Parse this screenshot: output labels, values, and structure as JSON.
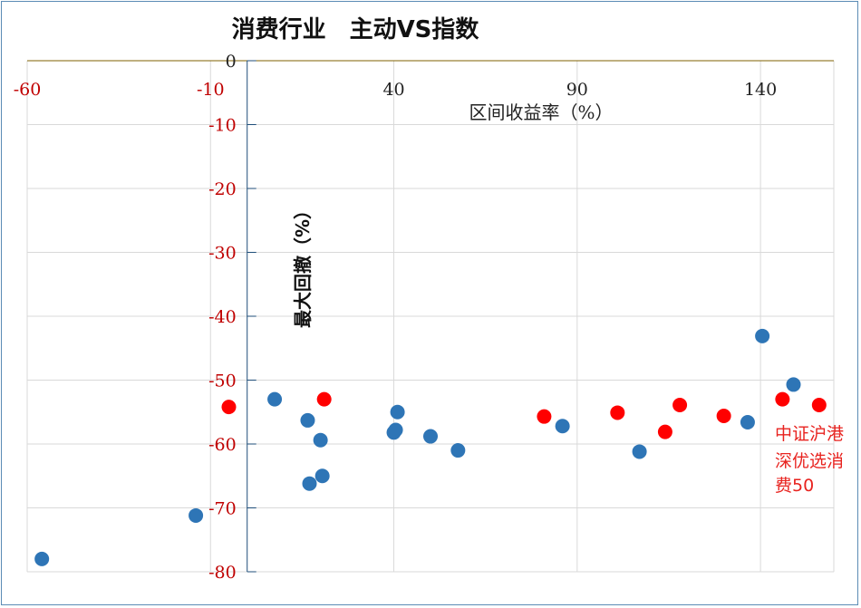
{
  "chart_data": {
    "type": "scatter",
    "title": "消费行业　主动VS指数",
    "xlabel": "区间收益率（%）",
    "ylabel": "最大回撤（%）",
    "xlim": [
      -60,
      160
    ],
    "ylim": [
      -80,
      0
    ],
    "x_ticks": [
      -60,
      -10,
      40,
      90,
      140
    ],
    "x_tick_labels": [
      "-60",
      "-10",
      "40",
      "90",
      "140"
    ],
    "y_ticks": [
      0,
      -10,
      -20,
      -30,
      -40,
      -50,
      -60,
      -70,
      -80
    ],
    "y_tick_labels": [
      "0",
      "-10",
      "-20",
      "-30",
      "-40",
      "-50",
      "-60",
      "-70",
      "-80"
    ],
    "grid": true,
    "colors": {
      "series_active": "#2e75b6",
      "series_index": "#ff0000",
      "negative_tick": "#c00000",
      "x_axis_line": "#7f6000",
      "grid": "#d9d9d9"
    },
    "series": [
      {
        "color": "#2e75b6",
        "points": [
          {
            "x": -56,
            "y": -78
          },
          {
            "x": -14,
            "y": -71.2
          },
          {
            "x": 7.5,
            "y": -53
          },
          {
            "x": 16.5,
            "y": -56.3
          },
          {
            "x": 17,
            "y": -66.2
          },
          {
            "x": 20,
            "y": -59.4
          },
          {
            "x": 20.5,
            "y": -65
          },
          {
            "x": 40,
            "y": -58.2
          },
          {
            "x": 40.5,
            "y": -57.8
          },
          {
            "x": 41,
            "y": -55
          },
          {
            "x": 50,
            "y": -58.8
          },
          {
            "x": 57.5,
            "y": -61
          },
          {
            "x": 86,
            "y": -57.2
          },
          {
            "x": 107,
            "y": -61.2
          },
          {
            "x": 136.5,
            "y": -56.6
          },
          {
            "x": 140.5,
            "y": -43.1
          },
          {
            "x": 149,
            "y": -50.7
          }
        ]
      },
      {
        "color": "#ff0000",
        "points": [
          {
            "x": -5,
            "y": -54.2
          },
          {
            "x": 21,
            "y": -53
          },
          {
            "x": 81,
            "y": -55.7
          },
          {
            "x": 101,
            "y": -55.1
          },
          {
            "x": 114,
            "y": -58.1
          },
          {
            "x": 118,
            "y": -53.9
          },
          {
            "x": 130,
            "y": -55.6
          },
          {
            "x": 146,
            "y": -53
          },
          {
            "x": 156,
            "y": -53.9
          }
        ]
      }
    ],
    "annotations": [
      {
        "text_lines": [
          "中证沪港",
          "深优选消",
          "费50"
        ],
        "color": "#e8231f"
      }
    ]
  }
}
